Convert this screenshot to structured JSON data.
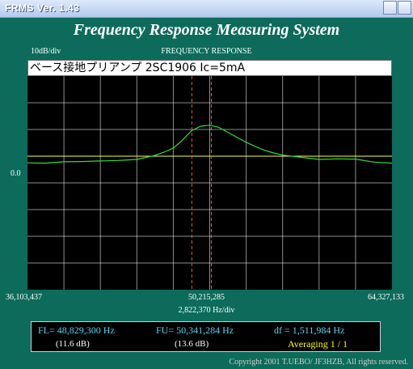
{
  "window": {
    "title": "FRMS   Ver. 1.43"
  },
  "header": {
    "app_title": "Frequency Response Measuring System"
  },
  "plot": {
    "y_scale": "10dB/div",
    "title": "FREQUENCY RESPONSE",
    "memo": "ベース接地プリアンプ 2SC1906 Ic=5mA",
    "ref_level": "0.0",
    "x_left": "36,103,437",
    "x_center": "50,215,285",
    "x_right": "64,327,133",
    "x_div": "2,822,370 Hz/div",
    "colors": {
      "trace": "#33dd33",
      "reference": "#ffff33",
      "markers": "#ff4b4b",
      "grid": "#ffffff",
      "background": "#000000"
    }
  },
  "chart_data": {
    "type": "line",
    "title": "FREQUENCY RESPONSE",
    "xlabel": "",
    "ylabel": "",
    "x_unit": "Hz",
    "xlim": [
      36103437,
      64327133
    ],
    "ylim": [
      -50,
      30
    ],
    "grid": true,
    "reference_level_db": 0.0,
    "markers_hz": [
      48829300,
      50341284
    ],
    "series": [
      {
        "x": [
          36103437,
          37514622,
          38925806,
          40336991,
          41748176,
          43159361,
          44570545,
          45981730,
          46687322,
          47392915,
          48098507,
          48804100,
          49509692,
          50215285,
          50920878,
          51626470,
          52332063,
          53037655,
          53743248,
          54448840,
          55154433,
          55860025,
          56565618,
          57271210,
          58682395,
          60093580,
          61504764,
          62915949,
          64327133
        ],
        "values": [
          -2.5,
          -2.6,
          -2.1,
          -2.0,
          -1.8,
          -1.6,
          -1.2,
          0.3,
          1.5,
          3.0,
          6.0,
          9.5,
          11.2,
          11.6,
          10.8,
          8.9,
          7.0,
          5.2,
          3.6,
          2.2,
          1.2,
          0.4,
          0.0,
          -0.4,
          -1.2,
          -1.0,
          -1.1,
          -2.2,
          -2.6
        ]
      }
    ]
  },
  "readout": {
    "fl": "FL= 48,829,300  Hz",
    "fl_db": "(11.6 dB)",
    "fu": "FU= 50,341,284  Hz",
    "fu_db": "(13.6 dB)",
    "df": "df = 1,511,984  Hz",
    "averaging": "Averaging   1 / 1"
  },
  "footer": {
    "copyright": "Copyright 2001 T.UEBO/ JF3HZB, All rights reserved."
  }
}
